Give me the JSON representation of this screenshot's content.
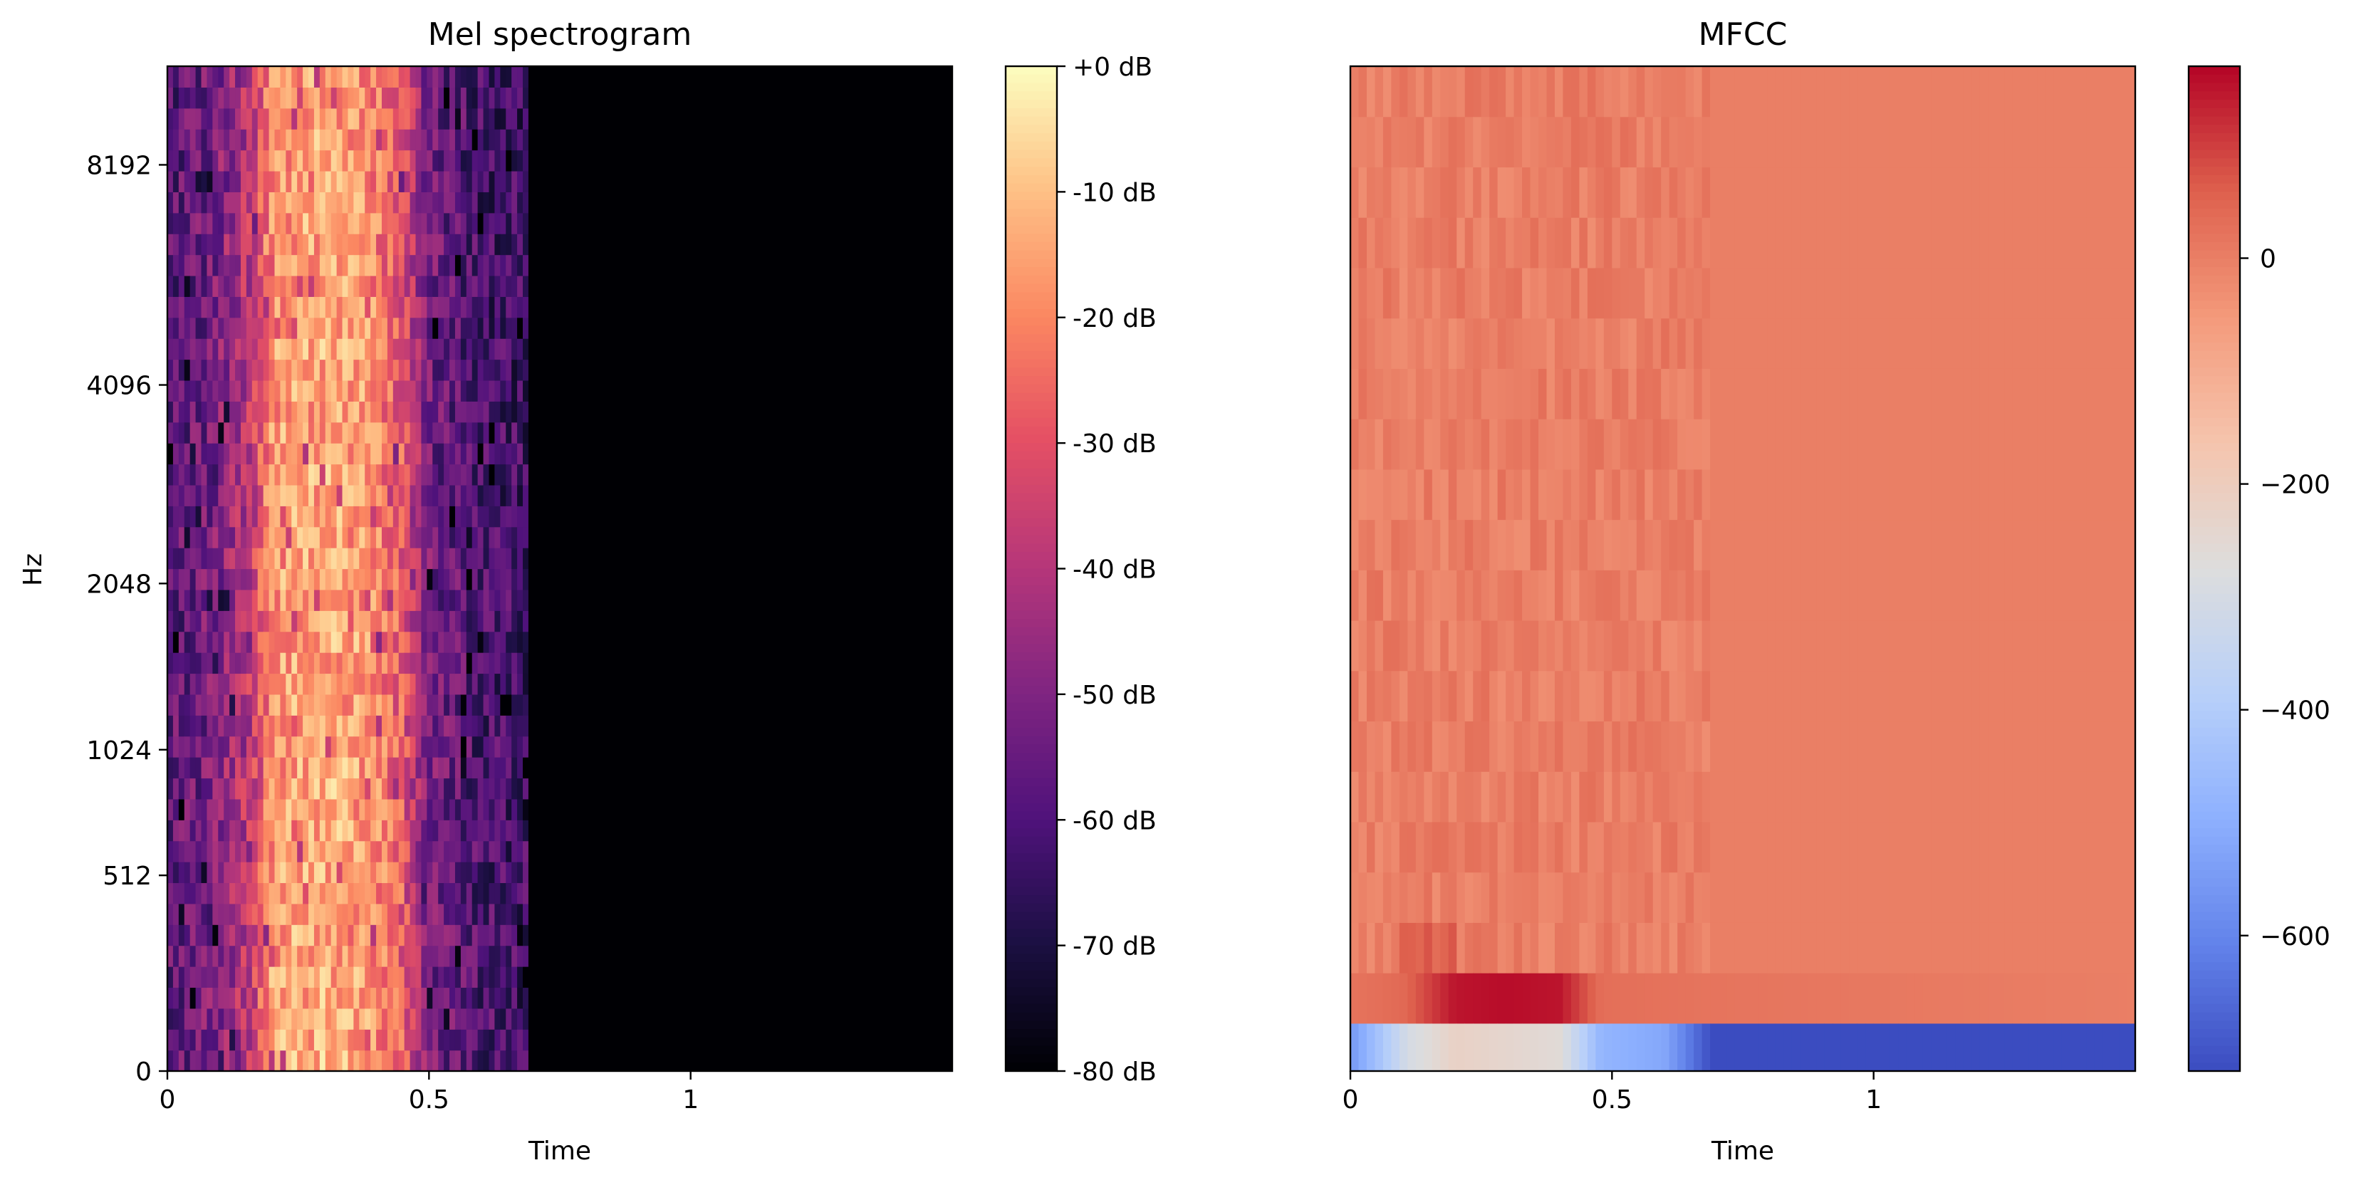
{
  "chart_data": [
    {
      "type": "heatmap",
      "title": "Mel spectrogram",
      "xlabel": "Time",
      "ylabel": "Hz",
      "x_ticks": [
        {
          "value": 0,
          "label": "0"
        },
        {
          "value": 0.5,
          "label": "0.5"
        },
        {
          "value": 1,
          "label": "1"
        }
      ],
      "xlim": [
        0,
        1.5
      ],
      "y_scale": "mel",
      "y_ticks": [
        {
          "value": 0,
          "label": "0"
        },
        {
          "value": 512,
          "label": "512"
        },
        {
          "value": 1024,
          "label": "1024"
        },
        {
          "value": 2048,
          "label": "2048"
        },
        {
          "value": 4096,
          "label": "4096"
        },
        {
          "value": 8192,
          "label": "8192"
        }
      ],
      "ylim": [
        0,
        11025
      ],
      "colormap": "magma",
      "colorbar": {
        "range": [
          -80,
          0
        ],
        "ticks": [
          {
            "value": 0,
            "label": "+0 dB"
          },
          {
            "value": -10,
            "label": "-10 dB"
          },
          {
            "value": -20,
            "label": "-20 dB"
          },
          {
            "value": -30,
            "label": "-30 dB"
          },
          {
            "value": -40,
            "label": "-40 dB"
          },
          {
            "value": -50,
            "label": "-50 dB"
          },
          {
            "value": -60,
            "label": "-60 dB"
          },
          {
            "value": -70,
            "label": "-70 dB"
          },
          {
            "value": -80,
            "label": "-80 dB"
          }
        ]
      },
      "signal_end_time": 0.69,
      "frames": 64,
      "mel_bins": 48,
      "approx_db_profile": {
        "time": [
          0,
          0.08,
          0.16,
          0.2,
          0.3,
          0.38,
          0.45,
          0.5,
          0.6,
          0.69
        ],
        "db": [
          -57,
          -52,
          -37,
          -16,
          -13,
          -16,
          -28,
          -52,
          -60,
          -62
        ]
      },
      "silence_db": -80
    },
    {
      "type": "heatmap",
      "title": "MFCC",
      "xlabel": "Time",
      "ylabel": "",
      "x_ticks": [
        {
          "value": 0,
          "label": "0"
        },
        {
          "value": 0.5,
          "label": "0.5"
        },
        {
          "value": 1,
          "label": "1"
        }
      ],
      "xlim": [
        0,
        1.5
      ],
      "coefficients": 20,
      "colormap": "coolwarm",
      "colorbar": {
        "range": [
          -720,
          170
        ],
        "ticks": [
          {
            "value": 0,
            "label": "0"
          },
          {
            "value": -200,
            "label": "−200"
          },
          {
            "value": -400,
            "label": "−400"
          },
          {
            "value": -600,
            "label": "−600"
          }
        ]
      },
      "coef0_profile": {
        "time": [
          0,
          0.11,
          0.2,
          0.3,
          0.4,
          0.48,
          0.6,
          0.69,
          1.5
        ],
        "value": [
          -560,
          -300,
          -220,
          -240,
          -260,
          -480,
          -520,
          -720,
          -720
        ]
      },
      "coef1_profile": {
        "time": [
          0,
          0.1,
          0.2,
          0.3,
          0.4,
          0.48,
          0.69,
          1.5
        ],
        "value": [
          20,
          40,
          150,
          160,
          150,
          30,
          20,
          0
        ]
      },
      "background_value": 0
    }
  ]
}
